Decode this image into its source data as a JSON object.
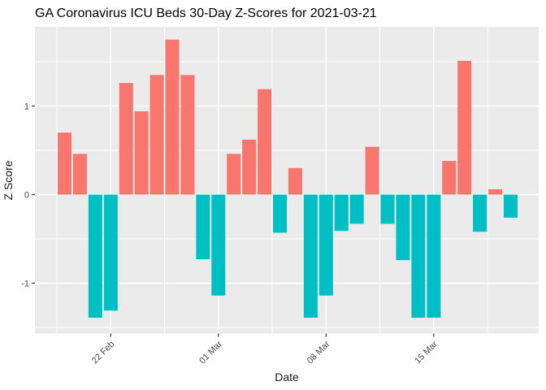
{
  "title": "GA Coronavirus ICU Beds 30-Day Z-Scores for 2021-03-21",
  "colors": {
    "positive_bar": "#F8766D",
    "negative_bar": "#00BFC4",
    "panel_background": "#EBEBEB",
    "gridline": "#FFFFFF",
    "tick_text": "#4D4D4D",
    "axis_mark": "#333333",
    "title_text": "#000000",
    "figure_background": "#FFFFFF"
  },
  "chart_data": {
    "type": "bar",
    "title": "GA Coronavirus ICU Beds 30-Day Z-Scores for 2021-03-21",
    "xlabel": "Date",
    "ylabel": "Z Score",
    "x": [
      "2021-02-19",
      "2021-02-20",
      "2021-02-21",
      "2021-02-22",
      "2021-02-23",
      "2021-02-24",
      "2021-02-25",
      "2021-02-26",
      "2021-02-27",
      "2021-02-28",
      "2021-03-01",
      "2021-03-02",
      "2021-03-03",
      "2021-03-04",
      "2021-03-05",
      "2021-03-06",
      "2021-03-07",
      "2021-03-08",
      "2021-03-09",
      "2021-03-10",
      "2021-03-11",
      "2021-03-12",
      "2021-03-13",
      "2021-03-14",
      "2021-03-15",
      "2021-03-16",
      "2021-03-17",
      "2021-03-18",
      "2021-03-19",
      "2021-03-20"
    ],
    "values": [
      0.7,
      0.46,
      -1.39,
      -1.31,
      1.26,
      0.94,
      1.35,
      1.75,
      1.35,
      -0.73,
      -1.14,
      0.46,
      0.62,
      1.19,
      -0.43,
      0.3,
      -1.39,
      -1.14,
      -0.41,
      -0.33,
      0.54,
      -0.33,
      -0.74,
      -1.39,
      -1.39,
      0.38,
      1.51,
      -0.42,
      0.06,
      -0.26
    ],
    "positive_color": "#F8766D",
    "negative_color": "#00BFC4",
    "bar_color_rule": "salmon #F8766D for z >= 0, teal #00BFC4 for z < 0",
    "x_tick_labels": [
      "22 Feb",
      "01 Mar",
      "08 Mar",
      "15 Mar"
    ],
    "x_tick_indices": [
      3,
      10,
      17,
      24
    ],
    "y_ticks": [
      1,
      0,
      -1
    ],
    "y_tick_labels": [
      "1",
      "0",
      "-1"
    ],
    "y_minor_ticks": [
      1.5,
      0.5,
      -0.5,
      -1.5
    ],
    "ylim": [
      -1.57,
      1.89
    ],
    "grid": true,
    "legend": false
  }
}
